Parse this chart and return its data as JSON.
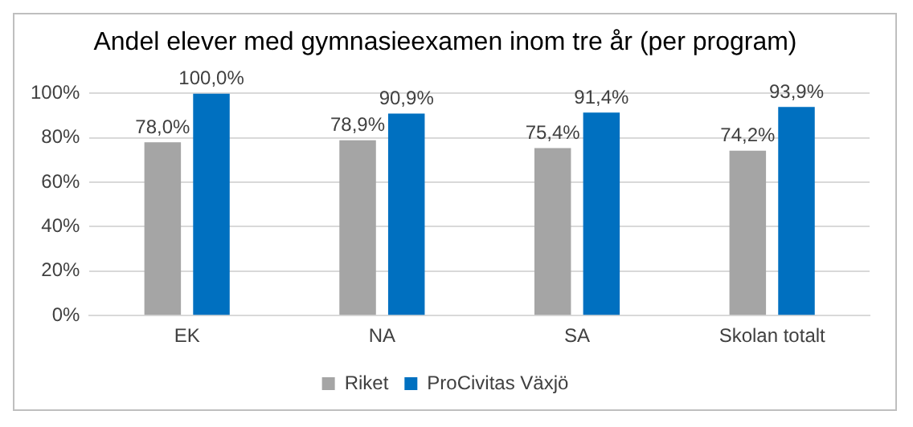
{
  "chart_data": {
    "type": "bar",
    "title": "Andel elever med gymnasieexamen inom tre år (per program)",
    "categories": [
      "EK",
      "NA",
      "SA",
      "Skolan totalt"
    ],
    "series": [
      {
        "name": "Riket",
        "color": "#a5a5a5",
        "values": [
          78.0,
          78.9,
          75.4,
          74.2
        ],
        "value_labels": [
          "78,0%",
          "78,9%",
          "75,4%",
          "74,2%"
        ]
      },
      {
        "name": "ProCivitas Växjö",
        "color": "#0070c0",
        "values": [
          100.0,
          90.9,
          91.4,
          93.9
        ],
        "value_labels": [
          "100,0%",
          "90,9%",
          "91,4%",
          "93,9%"
        ]
      }
    ],
    "ylim": [
      0,
      100
    ],
    "yticks": [
      {
        "value": 0,
        "label": "0%"
      },
      {
        "value": 20,
        "label": "20%"
      },
      {
        "value": 40,
        "label": "40%"
      },
      {
        "value": 60,
        "label": "60%"
      },
      {
        "value": 80,
        "label": "80%"
      },
      {
        "value": 100,
        "label": "100%"
      }
    ],
    "grid": "y",
    "legend": "bottom"
  }
}
